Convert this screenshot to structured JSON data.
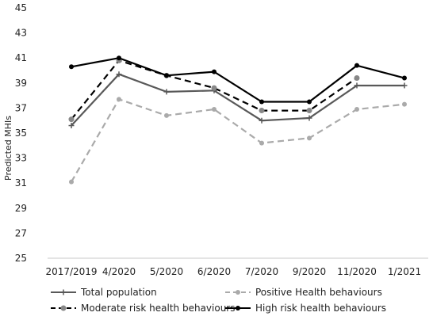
{
  "chart_data": {
    "type": "line",
    "ylabel": "Predicted MHIs",
    "ylim": [
      25,
      45
    ],
    "yticks": [
      25,
      27,
      29,
      31,
      33,
      35,
      37,
      39,
      41,
      43,
      45
    ],
    "categories": [
      "2017/2019",
      "4/2020",
      "5/2020",
      "6/2020",
      "7/2020",
      "9/2020",
      "11/2020",
      "1/2021"
    ],
    "grid": false,
    "legend_position": "bottom",
    "series": [
      {
        "name": "Total population",
        "values": [
          35.6,
          39.7,
          38.3,
          38.4,
          36.0,
          36.2,
          38.8,
          38.8
        ],
        "color": "#595959",
        "dash": "solid",
        "marker": "plus"
      },
      {
        "name": "Positive Health behaviours",
        "values": [
          31.1,
          37.7,
          36.4,
          36.9,
          34.2,
          34.6,
          36.9,
          37.3
        ],
        "color": "#aaaaaa",
        "dash": "dashed",
        "marker": "circle"
      },
      {
        "name": "Moderate risk health behaviours",
        "values": [
          36.1,
          40.8,
          39.6,
          38.6,
          36.8,
          36.8,
          39.4,
          null
        ],
        "color": "#000000",
        "dash": "dashed",
        "marker": "circle-grey"
      },
      {
        "name": "High risk health behaviours",
        "values": [
          40.3,
          41.0,
          39.6,
          39.9,
          37.5,
          37.5,
          40.4,
          39.4
        ],
        "color": "#000000",
        "dash": "solid",
        "marker": "circle"
      }
    ]
  }
}
